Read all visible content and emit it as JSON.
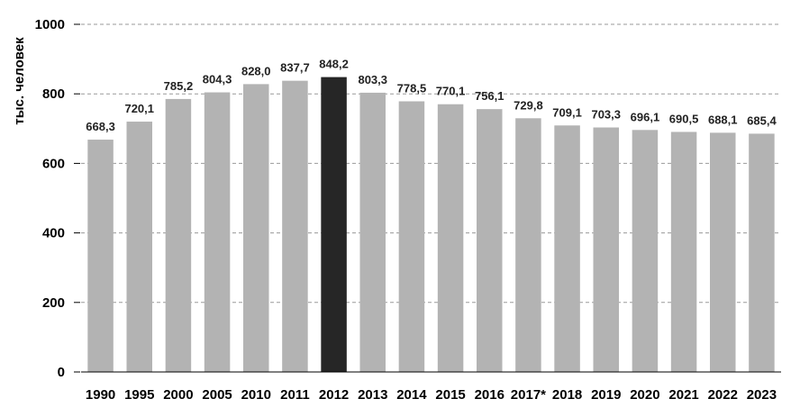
{
  "chart_data": {
    "type": "bar",
    "title": "",
    "xlabel": "",
    "ylabel": "тыс. человек",
    "ylim": [
      0,
      1000
    ],
    "yticks": [
      0,
      200,
      400,
      600,
      800,
      1000
    ],
    "grid": "horizontal-dashed",
    "categories": [
      "1990",
      "1995",
      "2000",
      "2005",
      "2010",
      "2011",
      "2012",
      "2013",
      "2014",
      "2015",
      "2016",
      "2017*",
      "2018",
      "2019",
      "2020",
      "2021",
      "2022",
      "2023"
    ],
    "values": [
      668.3,
      720.1,
      785.2,
      804.3,
      828.0,
      837.7,
      848.2,
      803.3,
      778.5,
      770.1,
      756.1,
      729.8,
      709.1,
      703.3,
      696.1,
      690.5,
      688.1,
      685.4
    ],
    "value_labels": [
      "668,3",
      "720,1",
      "785,2",
      "804,3",
      "828,0",
      "837,7",
      "848,2",
      "803,3",
      "778,5",
      "770,1",
      "756,1",
      "729,8",
      "709,1",
      "703,3",
      "696,1",
      "690,5",
      "688,1",
      "685,4"
    ],
    "highlight_category": "2012",
    "colors": {
      "bar": "#b3b3b3",
      "highlight": "#262626",
      "grid": "#9a9a9a"
    }
  }
}
